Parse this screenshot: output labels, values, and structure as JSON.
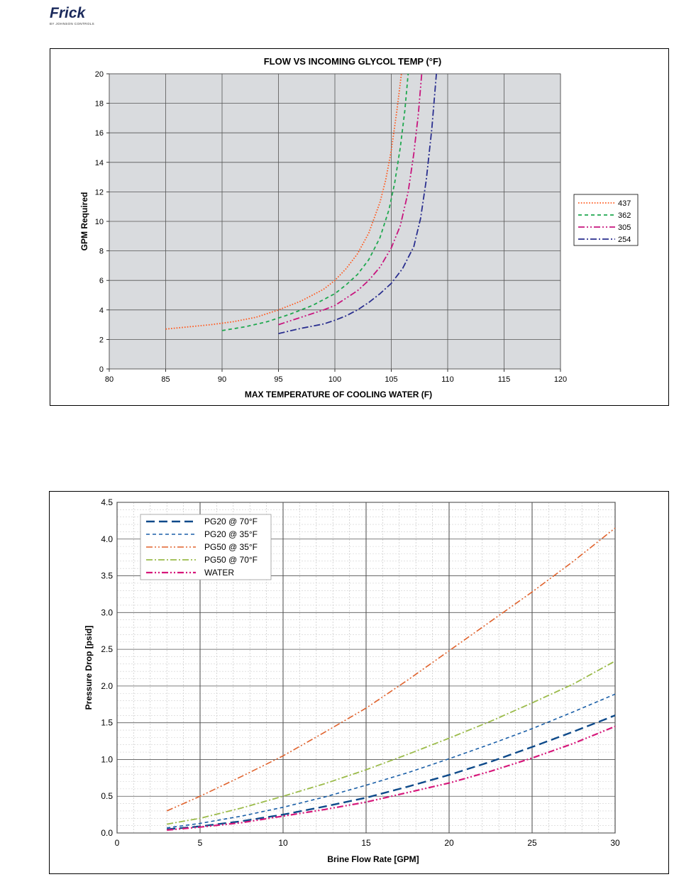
{
  "logo": {
    "brand": "Frick",
    "tagline": "BY JOHNSON CONTROLS"
  },
  "chart_data": [
    {
      "type": "line",
      "title": "FLOW VS INCOMING GLYCOL TEMP (°F)",
      "xlabel": "MAX TEMPERATURE OF COOLING WATER (F)",
      "ylabel": "GPM Required",
      "xlim": [
        80,
        120
      ],
      "ylim": [
        0,
        20
      ],
      "xticks": [
        "80",
        "85",
        "90",
        "95",
        "100",
        "105",
        "110",
        "115",
        "120"
      ],
      "yticks": [
        "0",
        "2",
        "4",
        "6",
        "8",
        "10",
        "12",
        "14",
        "16",
        "18",
        "20"
      ],
      "grid": true,
      "legend_position": "right",
      "background": "#d9dbde",
      "series": [
        {
          "name": "437",
          "color": "#ff5a1f",
          "dash": "dotted",
          "x": [
            85,
            87,
            89,
            91,
            93,
            95,
            97,
            99,
            100,
            101,
            102,
            103,
            104,
            104.5,
            105,
            105.5,
            105.9
          ],
          "y": [
            2.7,
            2.85,
            3.0,
            3.2,
            3.5,
            4.0,
            4.6,
            5.4,
            6.0,
            6.8,
            7.8,
            9.2,
            11.3,
            12.8,
            14.8,
            17.5,
            20
          ]
        },
        {
          "name": "362",
          "color": "#1fa84f",
          "dash": "dashed",
          "x": [
            90,
            92,
            94,
            96,
            98,
            100,
            101,
            102,
            103,
            104,
            104.8,
            105.3,
            105.8,
            106.2,
            106.5
          ],
          "y": [
            2.6,
            2.85,
            3.2,
            3.7,
            4.3,
            5.1,
            5.7,
            6.4,
            7.4,
            8.9,
            10.8,
            12.6,
            15.0,
            17.5,
            20
          ]
        },
        {
          "name": "305",
          "color": "#c8157e",
          "dash": "dashdotdot",
          "x": [
            95,
            97,
            99,
            100,
            101,
            102,
            103,
            104,
            105,
            105.8,
            106.5,
            107,
            107.4,
            107.7
          ],
          "y": [
            3.0,
            3.5,
            4.0,
            4.3,
            4.8,
            5.3,
            6.0,
            6.9,
            8.2,
            9.7,
            12.0,
            14.6,
            17.3,
            20
          ]
        },
        {
          "name": "254",
          "color": "#2a2f8f",
          "dash": "dashdot",
          "x": [
            95,
            97,
            99,
            100,
            101,
            102,
            103,
            104,
            105,
            106,
            107,
            107.6,
            108.1,
            108.6,
            109
          ],
          "y": [
            2.4,
            2.75,
            3.05,
            3.3,
            3.6,
            4.0,
            4.5,
            5.1,
            5.8,
            6.8,
            8.3,
            10.2,
            12.8,
            16.3,
            20
          ]
        }
      ]
    },
    {
      "type": "line",
      "title": "",
      "xlabel": "Brine Flow Rate [GPM]",
      "ylabel": "Pressure Drop  [psid]",
      "xlim": [
        0,
        30
      ],
      "ylim": [
        0,
        4.5
      ],
      "xticks": [
        "0",
        "5",
        "10",
        "15",
        "20",
        "25",
        "30"
      ],
      "yticks": [
        "0.0",
        "0.5",
        "1.0",
        "1.5",
        "2.0",
        "2.5",
        "3.0",
        "3.5",
        "4.0",
        "4.5"
      ],
      "grid": true,
      "legend_position": "top-left",
      "series": [
        {
          "name": "PG20 @ 70°F",
          "color": "#0e4a8a",
          "dash": "longdash",
          "width": 2.4,
          "x": [
            3,
            5,
            7.5,
            10,
            12.5,
            15,
            17.5,
            20,
            22.5,
            25,
            27.5,
            30
          ],
          "y": [
            0.05,
            0.09,
            0.16,
            0.25,
            0.36,
            0.48,
            0.63,
            0.79,
            0.97,
            1.17,
            1.38,
            1.6
          ]
        },
        {
          "name": "PG20 @ 35°F",
          "color": "#1a5fa8",
          "dash": "dashed",
          "width": 1.6,
          "x": [
            3,
            5,
            7.5,
            10,
            12.5,
            15,
            17.5,
            20,
            22.5,
            25,
            27.5,
            30
          ],
          "y": [
            0.07,
            0.13,
            0.23,
            0.35,
            0.49,
            0.65,
            0.82,
            1.01,
            1.21,
            1.42,
            1.65,
            1.89
          ]
        },
        {
          "name": "PG50 @ 35°F",
          "color": "#e0622c",
          "dash": "dashdotdot",
          "width": 1.6,
          "x": [
            3,
            5,
            7.5,
            10,
            12.5,
            15,
            17.5,
            20,
            22.5,
            25,
            27.5,
            30
          ],
          "y": [
            0.3,
            0.5,
            0.77,
            1.05,
            1.37,
            1.7,
            2.08,
            2.48,
            2.88,
            3.28,
            3.7,
            4.15
          ]
        },
        {
          "name": "PG50 @ 70°F",
          "color": "#9bbb4a",
          "dash": "dashdot",
          "width": 1.8,
          "x": [
            3,
            5,
            7.5,
            10,
            12.5,
            15,
            17.5,
            20,
            22.5,
            25,
            27.5,
            30
          ],
          "y": [
            0.12,
            0.2,
            0.34,
            0.5,
            0.67,
            0.86,
            1.07,
            1.29,
            1.52,
            1.77,
            2.03,
            2.34
          ]
        },
        {
          "name": "WATER",
          "color": "#d6177a",
          "dash": "dashdotdot",
          "width": 2.2,
          "x": [
            3,
            5,
            7.5,
            10,
            12.5,
            15,
            17.5,
            20,
            22.5,
            25,
            27.5,
            30
          ],
          "y": [
            0.04,
            0.08,
            0.14,
            0.23,
            0.32,
            0.42,
            0.55,
            0.68,
            0.84,
            1.02,
            1.22,
            1.45
          ]
        }
      ]
    }
  ]
}
